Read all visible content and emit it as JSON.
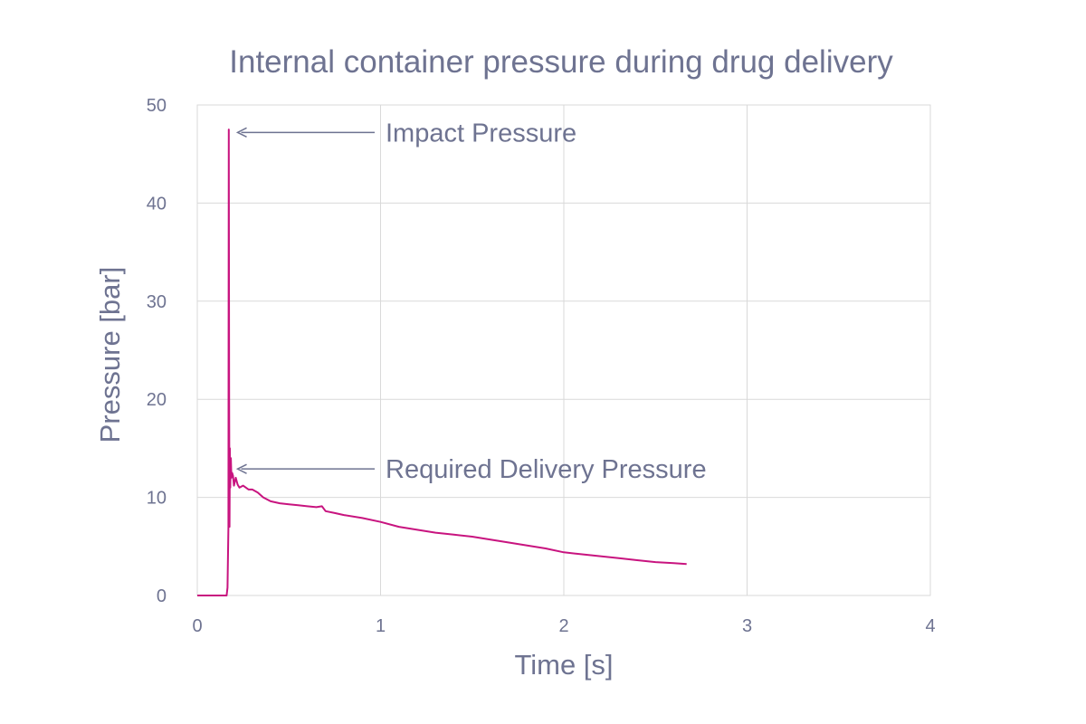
{
  "chart_data": {
    "type": "line",
    "title": "Internal container pressure during drug delivery",
    "xlabel": "Time [s]",
    "ylabel": "Pressure [bar]",
    "xlim": [
      0,
      4
    ],
    "ylim": [
      0,
      50
    ],
    "xticks": [
      0,
      1,
      2,
      3,
      4
    ],
    "yticks": [
      0,
      10,
      20,
      30,
      40,
      50
    ],
    "grid": true,
    "line_color": "#c8147f",
    "series": [
      {
        "x": [
          0,
          0.16,
          0.165,
          0.17,
          0.172,
          0.174,
          0.176,
          0.178,
          0.18,
          0.183,
          0.186,
          0.19,
          0.195,
          0.2,
          0.21,
          0.22,
          0.23,
          0.25,
          0.28,
          0.3,
          0.33,
          0.36,
          0.4,
          0.45,
          0.5,
          0.55,
          0.6,
          0.65,
          0.68,
          0.7,
          0.75,
          0.8,
          0.9,
          1.0,
          1.1,
          1.2,
          1.3,
          1.4,
          1.5,
          1.6,
          1.7,
          1.8,
          1.9,
          2.0,
          2.1,
          2.2,
          2.3,
          2.4,
          2.5,
          2.6,
          2.67
        ],
        "y": [
          0,
          0,
          0.8,
          7.0,
          47.5,
          20,
          7,
          15,
          11,
          14,
          12,
          12.5,
          12.2,
          11.2,
          12,
          11.3,
          11,
          11.2,
          10.8,
          10.8,
          10.5,
          10.0,
          9.6,
          9.4,
          9.3,
          9.2,
          9.1,
          9.0,
          9.1,
          8.6,
          8.4,
          8.2,
          7.9,
          7.5,
          7.0,
          6.7,
          6.4,
          6.2,
          6.0,
          5.7,
          5.4,
          5.1,
          4.8,
          4.4,
          4.2,
          4.0,
          3.8,
          3.6,
          3.4,
          3.3,
          3.2
        ]
      }
    ],
    "annotations": [
      {
        "text": "Impact Pressure",
        "arrow_to": {
          "x": 0.21,
          "y": 47.2
        }
      },
      {
        "text": "Required Delivery Pressure",
        "arrow_to": {
          "x": 0.21,
          "y": 12.9
        }
      }
    ]
  }
}
